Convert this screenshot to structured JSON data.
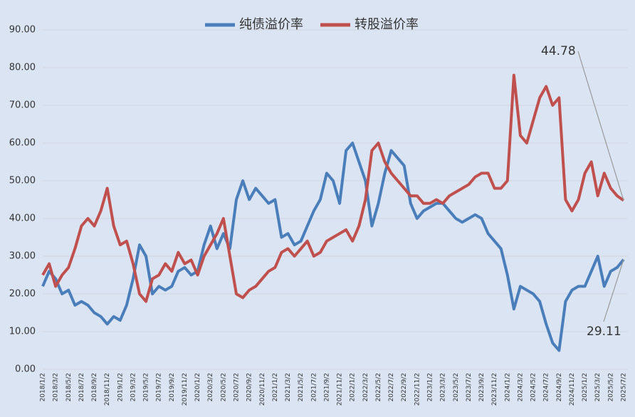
{
  "chart_data": {
    "type": "line",
    "categories": [
      "2018/1/2",
      null,
      "2018/3/2",
      null,
      "2018/5/2",
      null,
      "2018/7/2",
      null,
      "2018/9/2",
      null,
      "2018/11/2",
      null,
      "2019/1/2",
      null,
      "2019/3/2",
      null,
      "2019/5/2",
      null,
      "2019/7/2",
      null,
      "2019/9/2",
      null,
      "2019/11/2",
      null,
      "2020/1/2",
      null,
      "2020/3/2",
      null,
      "2020/5/2",
      null,
      "2020/7/2",
      null,
      "2020/9/2",
      null,
      "2020/11/2",
      null,
      "2021/1/2",
      null,
      "2021/3/2",
      null,
      "2021/5/2",
      null,
      "2021/7/2",
      null,
      "2021/9/2",
      null,
      "2021/11/2",
      null,
      "2022/1/2",
      null,
      "2022/3/2",
      null,
      "2022/5/2",
      null,
      "2022/7/2",
      null,
      "2022/9/2",
      null,
      "2022/11/2",
      null,
      "2023/1/2",
      null,
      "2023/3/2",
      null,
      "2023/5/2",
      null,
      "2023/7/2",
      null,
      "2023/9/2",
      null,
      "2023/11/2",
      null,
      "2024/1/2",
      null,
      "2024/3/2",
      null,
      "2024/5/2",
      null,
      "2024/7/2",
      null,
      "2024/9/2",
      null,
      "2024/11/2",
      null,
      "2025/1/2",
      null,
      "2025/3/2",
      null,
      "2025/5/2",
      null,
      "2025/7/2"
    ],
    "series": [
      {
        "name": "纯债溢价率",
        "color": "#4a7ebb",
        "values": [
          22,
          26,
          24,
          20,
          21,
          17,
          18,
          17,
          15,
          14,
          12,
          14,
          13,
          17,
          24,
          33,
          30,
          20,
          22,
          21,
          22,
          26,
          27,
          25,
          26,
          33,
          38,
          32,
          36,
          32,
          45,
          50,
          45,
          48,
          46,
          44,
          45,
          35,
          36,
          33,
          34,
          38,
          42,
          45,
          52,
          50,
          44,
          58,
          60,
          55,
          50,
          38,
          44,
          52,
          58,
          56,
          54,
          44,
          40,
          42,
          43,
          44,
          44,
          42,
          40,
          39,
          40,
          41,
          40,
          36,
          34,
          32,
          25,
          16,
          22,
          21,
          20,
          18,
          12,
          7,
          5,
          18,
          21,
          22,
          22,
          26,
          30,
          22,
          26,
          27,
          29.11
        ]
      },
      {
        "name": "转股溢价率",
        "color": "#c0504d",
        "values": [
          25,
          28,
          22,
          25,
          27,
          32,
          38,
          40,
          38,
          42,
          48,
          38,
          33,
          34,
          28,
          20,
          18,
          24,
          25,
          28,
          26,
          31,
          28,
          29,
          25,
          30,
          33,
          36,
          40,
          30,
          20,
          19,
          21,
          22,
          24,
          26,
          27,
          31,
          32,
          30,
          32,
          34,
          30,
          31,
          34,
          35,
          36,
          37,
          34,
          38,
          45,
          58,
          60,
          55,
          52,
          50,
          48,
          46,
          46,
          44,
          44,
          45,
          44,
          46,
          47,
          48,
          49,
          51,
          52,
          52,
          48,
          48,
          50,
          78,
          62,
          60,
          66,
          72,
          75,
          70,
          72,
          45,
          42,
          45,
          52,
          55,
          46,
          52,
          48,
          46,
          44.78
        ]
      }
    ],
    "ylim": [
      0,
      90
    ],
    "yticks": [
      {
        "value": 0,
        "label": "0.00"
      },
      {
        "value": 10,
        "label": "10.00"
      },
      {
        "value": 20,
        "label": "20.00"
      },
      {
        "value": 30,
        "label": "30.00"
      },
      {
        "value": 40,
        "label": "40.00"
      },
      {
        "value": 50,
        "label": "50.00"
      },
      {
        "value": 60,
        "label": "60.00"
      },
      {
        "value": 70,
        "label": "70.00"
      },
      {
        "value": 80,
        "label": "80.00"
      },
      {
        "value": 90,
        "label": "90.00"
      }
    ],
    "grid": true,
    "legend": "top",
    "annotations": [
      {
        "text": "44.78",
        "value": 44.78
      },
      {
        "text": "29.11",
        "value": 29.11
      }
    ]
  }
}
